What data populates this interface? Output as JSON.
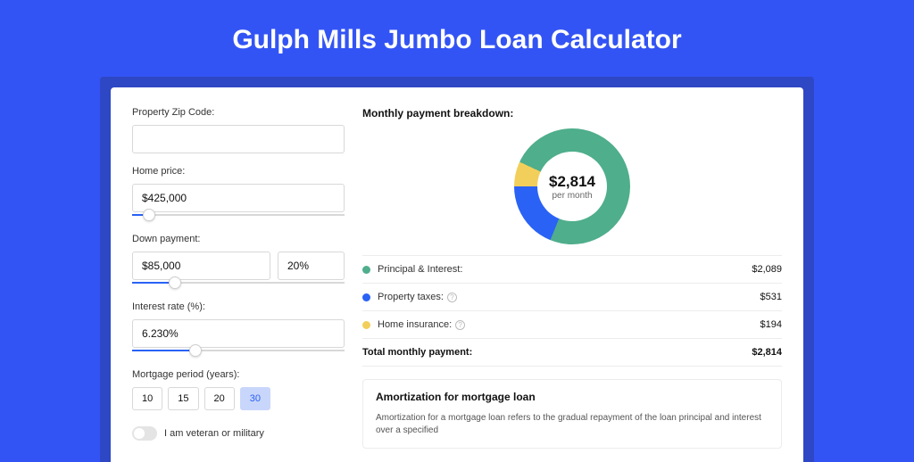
{
  "title": "Gulph Mills Jumbo Loan Calculator",
  "colors": {
    "page_bg": "#3354f4",
    "header_bg": "#2e47c4",
    "card_bg": "#ffffff",
    "accent": "#2a62f5",
    "input_border": "#d8d8d8",
    "divider": "#ececec"
  },
  "form": {
    "zip": {
      "label": "Property Zip Code:",
      "value": ""
    },
    "home_price": {
      "label": "Home price:",
      "value": "$425,000",
      "slider_pct": 8
    },
    "down_payment": {
      "label": "Down payment:",
      "value": "$85,000",
      "pct": "20%",
      "slider_pct": 20
    },
    "interest": {
      "label": "Interest rate (%):",
      "value": "6.230%",
      "slider_pct": 30
    },
    "period": {
      "label": "Mortgage period (years):",
      "options": [
        "10",
        "15",
        "20",
        "30"
      ],
      "active_index": 3
    },
    "veteran": {
      "label": "I am veteran or military",
      "checked": false
    }
  },
  "breakdown": {
    "title": "Monthly payment breakdown:",
    "center_value": "$2,814",
    "center_sub": "per month",
    "items": [
      {
        "label": "Principal & Interest:",
        "value": "$2,089",
        "color": "#4fae8c",
        "share": 0.742,
        "info": false
      },
      {
        "label": "Property taxes:",
        "value": "$531",
        "color": "#2a62f5",
        "share": 0.189,
        "info": true
      },
      {
        "label": "Home insurance:",
        "value": "$194",
        "color": "#f2cf5b",
        "share": 0.069,
        "info": true
      }
    ],
    "total_label": "Total monthly payment:",
    "total_value": "$2,814"
  },
  "amortization": {
    "title": "Amortization for mortgage loan",
    "text": "Amortization for a mortgage loan refers to the gradual repayment of the loan principal and interest over a specified"
  }
}
